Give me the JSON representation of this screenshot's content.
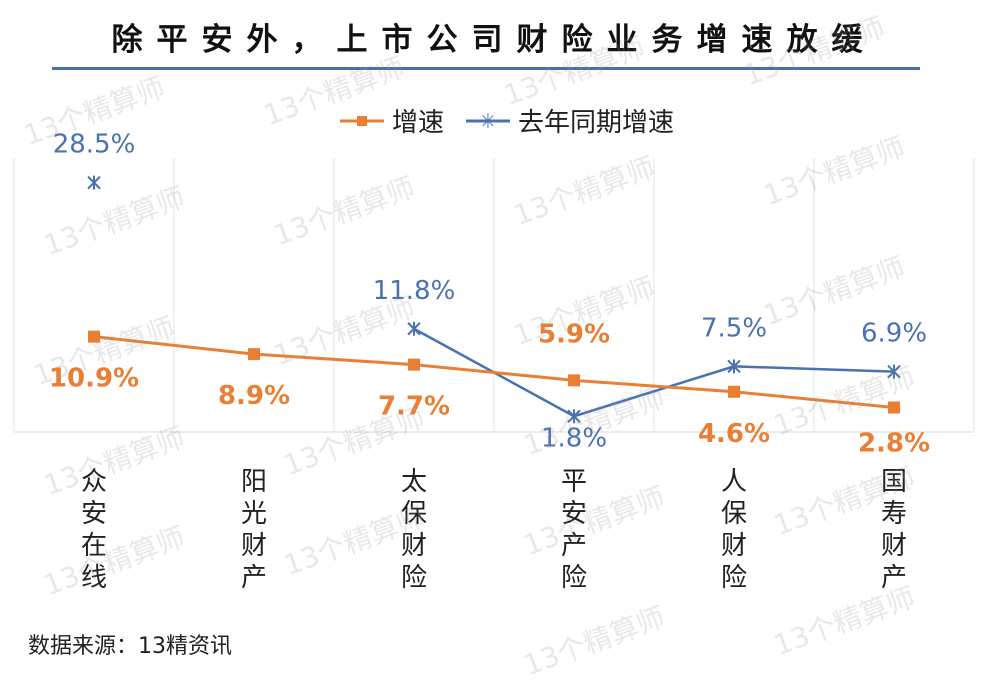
{
  "chart_data": {
    "type": "line",
    "title": "除平安外，上市公司财险业务增速放缓",
    "categories": [
      "众安在线",
      "阳光财产",
      "太保财险",
      "平安产险",
      "人保财险",
      "国寿财产"
    ],
    "series": [
      {
        "name": "增速",
        "values": [
          10.9,
          8.9,
          7.7,
          5.9,
          4.6,
          2.8
        ],
        "labels": [
          "10.9%",
          "8.9%",
          "7.7%",
          "5.9%",
          "4.6%",
          "2.8%"
        ],
        "color": "#e87f35",
        "marker": "square"
      },
      {
        "name": "去年同期增速",
        "values": [
          28.5,
          null,
          11.8,
          1.8,
          7.5,
          6.9
        ],
        "labels": [
          "28.5%",
          "",
          "11.8%",
          "1.8%",
          "7.5%",
          "6.9%"
        ],
        "color": "#4a72b0",
        "marker": "star"
      }
    ],
    "grid": true,
    "legend_position": "top-center"
  },
  "source": "数据来源：13精资讯",
  "watermark": "13个精算师"
}
